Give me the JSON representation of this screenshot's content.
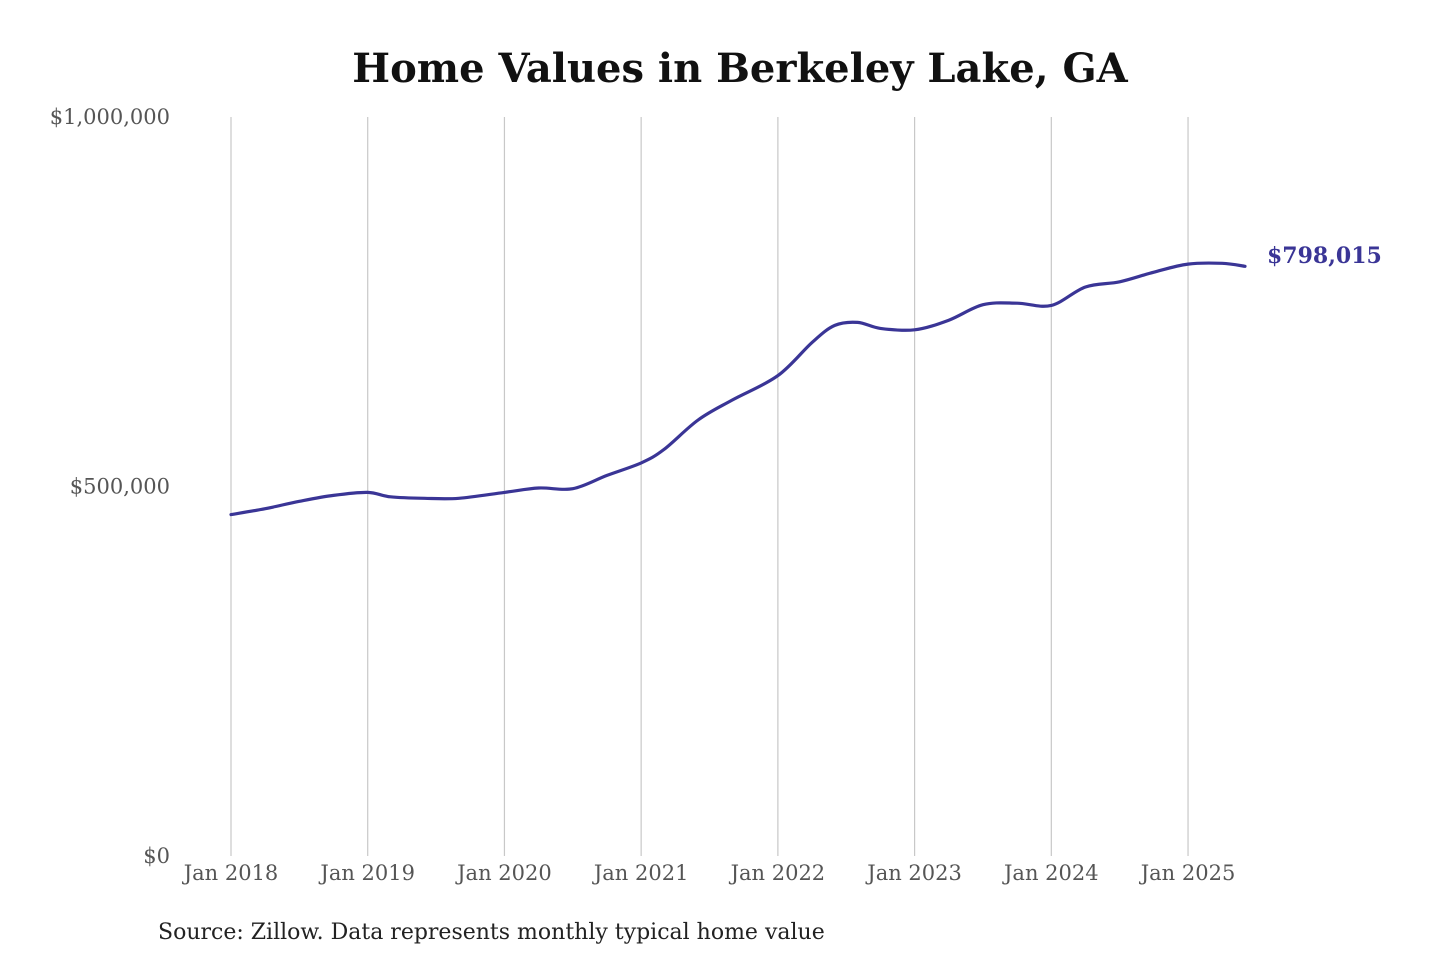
{
  "chart_data": {
    "type": "line",
    "title": "Home Values in Berkeley Lake, GA",
    "source": "Source: Zillow. Data represents monthly typical home value",
    "end_label": "$798,015",
    "line_color": "#3a3596",
    "ylim": [
      0,
      1000000
    ],
    "xlim": [
      "2018-01",
      "2025-06"
    ],
    "y_ticks": [
      {
        "value": 0,
        "label": "$0"
      },
      {
        "value": 500000,
        "label": "$500,000"
      },
      {
        "value": 1000000,
        "label": "$1,000,000"
      }
    ],
    "x_ticks": [
      {
        "value": "2018-01",
        "label": "Jan 2018"
      },
      {
        "value": "2019-01",
        "label": "Jan 2019"
      },
      {
        "value": "2020-01",
        "label": "Jan 2020"
      },
      {
        "value": "2021-01",
        "label": "Jan 2021"
      },
      {
        "value": "2022-01",
        "label": "Jan 2022"
      },
      {
        "value": "2023-01",
        "label": "Jan 2023"
      },
      {
        "value": "2024-01",
        "label": "Jan 2024"
      },
      {
        "value": "2025-01",
        "label": "Jan 2025"
      }
    ],
    "grid": "vertical",
    "series": [
      {
        "name": "",
        "points": [
          {
            "x": "2018-01",
            "y": 462000
          },
          {
            "x": "2018-04",
            "y": 470000
          },
          {
            "x": "2018-07",
            "y": 480000
          },
          {
            "x": "2018-10",
            "y": 488000
          },
          {
            "x": "2019-01",
            "y": 492000
          },
          {
            "x": "2019-03",
            "y": 486000
          },
          {
            "x": "2019-06",
            "y": 484000
          },
          {
            "x": "2019-09",
            "y": 484000
          },
          {
            "x": "2020-01",
            "y": 492000
          },
          {
            "x": "2020-04",
            "y": 498000
          },
          {
            "x": "2020-07",
            "y": 497000
          },
          {
            "x": "2020-10",
            "y": 515000
          },
          {
            "x": "2021-01",
            "y": 532000
          },
          {
            "x": "2021-03",
            "y": 550000
          },
          {
            "x": "2021-06",
            "y": 590000
          },
          {
            "x": "2021-09",
            "y": 617000
          },
          {
            "x": "2022-01",
            "y": 650000
          },
          {
            "x": "2022-04",
            "y": 695000
          },
          {
            "x": "2022-06",
            "y": 718000
          },
          {
            "x": "2022-08",
            "y": 722000
          },
          {
            "x": "2022-10",
            "y": 714000
          },
          {
            "x": "2023-01",
            "y": 712000
          },
          {
            "x": "2023-04",
            "y": 725000
          },
          {
            "x": "2023-07",
            "y": 746000
          },
          {
            "x": "2023-10",
            "y": 748000
          },
          {
            "x": "2024-01",
            "y": 745000
          },
          {
            "x": "2024-04",
            "y": 770000
          },
          {
            "x": "2024-07",
            "y": 777000
          },
          {
            "x": "2024-10",
            "y": 790000
          },
          {
            "x": "2025-01",
            "y": 801000
          },
          {
            "x": "2025-04",
            "y": 802000
          },
          {
            "x": "2025-06",
            "y": 798015
          }
        ]
      }
    ]
  }
}
